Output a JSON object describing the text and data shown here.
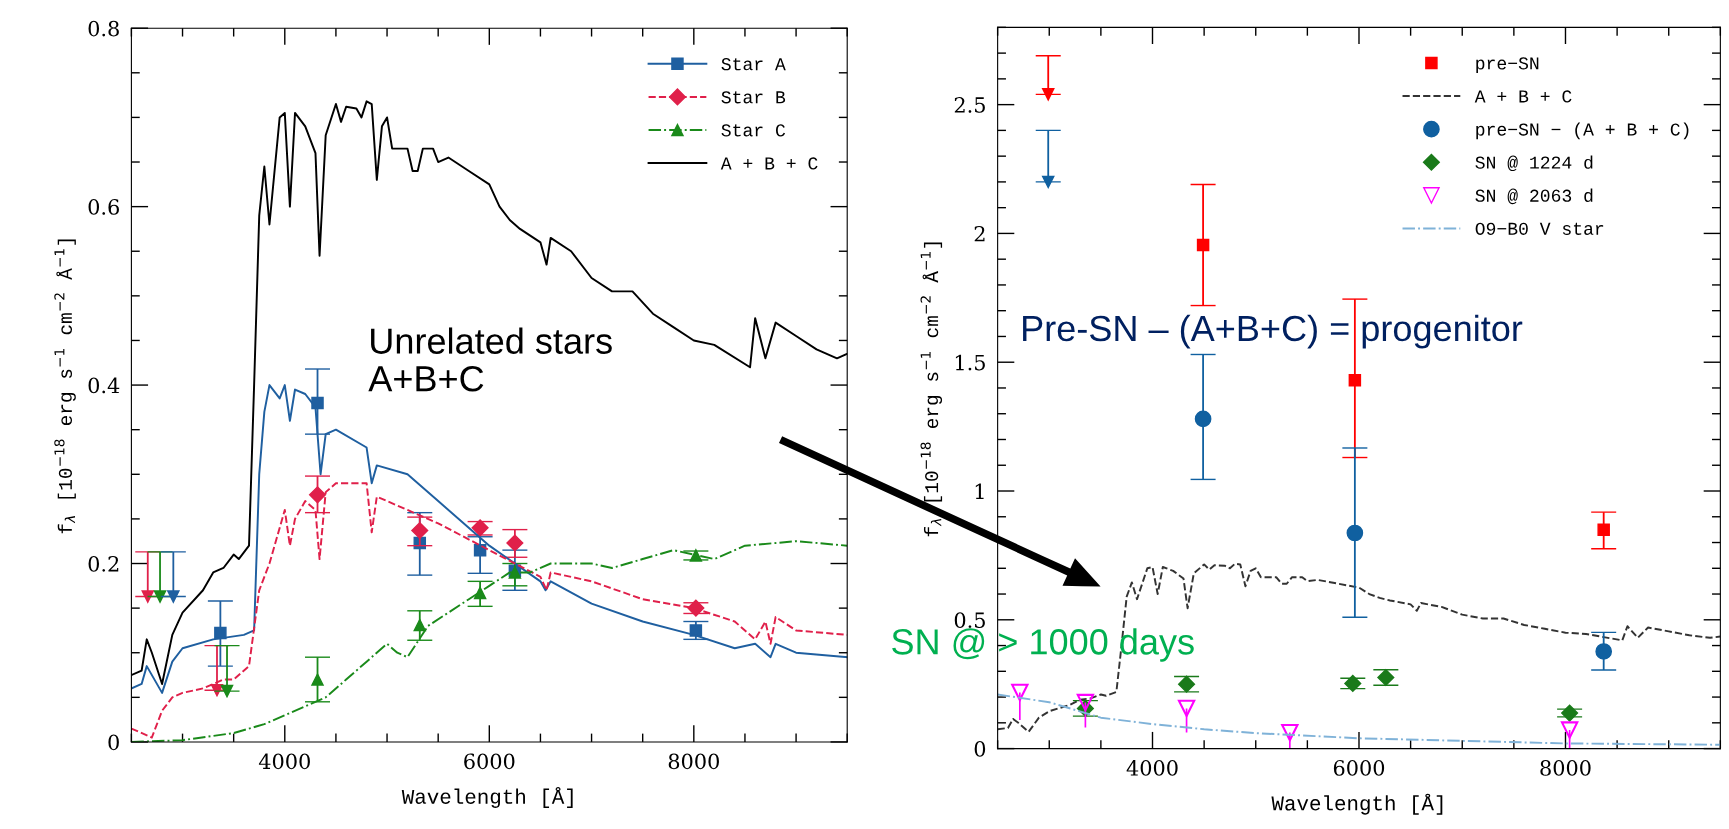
{
  "chart_data": [
    {
      "type": "line",
      "xlabel": "Wavelength [Å]",
      "ylabel": "f$_{λ}$ [10$^{−18}$ erg s$^{−1}$ cm$^{−2}$ Å$^{−1}$]",
      "xlim": [
        2500,
        9500
      ],
      "ylim": [
        0,
        0.8
      ],
      "xticks": [
        {
          "value": 2500,
          "label": null
        },
        {
          "value": 3000,
          "label": null
        },
        {
          "value": 3500,
          "label": null
        },
        4000,
        {
          "value": 4500,
          "label": null
        },
        {
          "value": 5000,
          "label": null
        },
        {
          "value": 5500,
          "label": null
        },
        6000,
        {
          "value": 6500,
          "label": null
        },
        {
          "value": 7000,
          "label": null
        },
        {
          "value": 7500,
          "label": null
        },
        8000,
        {
          "value": 8500,
          "label": null
        },
        {
          "value": 9000,
          "label": null
        },
        {
          "value": 9500,
          "label": null
        }
      ],
      "yticks": [
        0,
        {
          "value": 0.05,
          "label": null
        },
        {
          "value": 0.1,
          "label": null
        },
        {
          "value": 0.15,
          "label": null
        },
        0.2,
        {
          "value": 0.25,
          "label": null
        },
        {
          "value": 0.3,
          "label": null
        },
        {
          "value": 0.35,
          "label": null
        },
        0.4,
        {
          "value": 0.45,
          "label": null
        },
        {
          "value": 0.5,
          "label": null
        },
        {
          "value": 0.55,
          "label": null
        },
        0.6,
        {
          "value": 0.65,
          "label": null
        },
        {
          "value": 0.7,
          "label": null
        },
        {
          "value": 0.75,
          "label": null
        },
        0.8
      ],
      "legend": "top right",
      "grid": false,
      "annotations": [
        "Unrelated stars\nA+B+C"
      ],
      "series": [
        {
          "name": "Star A",
          "type": "scatter",
          "color": "#1f5fa0",
          "marker": "square",
          "x": [
            3370,
            4320,
            5320,
            5910,
            6250,
            8020
          ],
          "values": [
            0.122,
            0.38,
            0.223,
            0.215,
            0.192,
            0.125
          ],
          "errors": [
            [
              0.085,
              0.158
            ],
            [
              0.345,
              0.418
            ],
            [
              0.187,
              0.257
            ],
            [
              0.189,
              0.23
            ],
            [
              0.17,
              0.215
            ],
            [
              0.115,
              0.135
            ]
          ]
        },
        {
          "name": "Star B",
          "type": "scatter",
          "color": "#e0204a",
          "marker": "diamond",
          "x": [
            4320,
            5320,
            5910,
            6250,
            8020
          ],
          "values": [
            0.277,
            0.237,
            0.24,
            0.223,
            0.15
          ],
          "errors": [
            [
              0.257,
              0.298
            ],
            [
              0.22,
              0.252
            ],
            [
              0.232,
              0.247
            ],
            [
              0.207,
              0.238
            ],
            [
              0.144,
              0.156
            ]
          ]
        },
        {
          "name": "Star C",
          "type": "scatter",
          "color": "#1a8a1a",
          "marker": "triangle",
          "x": [
            4320,
            5320,
            5910,
            6250,
            8020
          ],
          "values": [
            0.07,
            0.131,
            0.167,
            0.19,
            0.209
          ],
          "errors": [
            [
              0.045,
              0.095
            ],
            [
              0.114,
              0.147
            ],
            [
              0.152,
              0.18
            ],
            [
              0.175,
              0.2
            ],
            [
              0.204,
              0.214
            ]
          ]
        },
        {
          "name": "A + B + C",
          "color": "#000000",
          "line_style": "solid",
          "x": [
            2500,
            2600,
            2650,
            2700,
            2800,
            2900,
            3000,
            3200,
            3300,
            3400,
            3500,
            3550,
            3650,
            3700,
            3750,
            3800,
            3850,
            3950,
            4000,
            4050,
            4100,
            4200,
            4300,
            4340,
            4400,
            4500,
            4550,
            4600,
            4700,
            4750,
            4800,
            4850,
            4900,
            4950,
            5000,
            5050,
            5200,
            5250,
            5300,
            5350,
            5450,
            5500,
            5600,
            5800,
            6000,
            6100,
            6200,
            6300,
            6500,
            6560,
            6600,
            6800,
            7000,
            7200,
            7400,
            7600,
            7800,
            8000,
            8200,
            8550,
            8600,
            8700,
            8800,
            9000,
            9200,
            9400,
            9500
          ],
          "values": [
            0.075,
            0.08,
            0.115,
            0.1,
            0.065,
            0.12,
            0.145,
            0.17,
            0.19,
            0.195,
            0.21,
            0.205,
            0.22,
            0.4,
            0.59,
            0.645,
            0.58,
            0.7,
            0.705,
            0.6,
            0.705,
            0.69,
            0.66,
            0.545,
            0.68,
            0.715,
            0.695,
            0.712,
            0.71,
            0.7,
            0.718,
            0.715,
            0.63,
            0.69,
            0.7,
            0.665,
            0.665,
            0.64,
            0.64,
            0.665,
            0.665,
            0.65,
            0.655,
            0.64,
            0.625,
            0.6,
            0.585,
            0.575,
            0.56,
            0.535,
            0.565,
            0.55,
            0.52,
            0.505,
            0.505,
            0.48,
            0.465,
            0.45,
            0.445,
            0.42,
            0.475,
            0.43,
            0.47,
            0.455,
            0.44,
            0.43,
            0.435
          ]
        },
        {
          "color": "#1f5fa0",
          "line_style": "solid",
          "x": [
            2500,
            2600,
            2650,
            2800,
            2900,
            3000,
            3300,
            3600,
            3700,
            3750,
            3800,
            3850,
            3950,
            4000,
            4050,
            4100,
            4200,
            4300,
            4350,
            4400,
            4500,
            4800,
            4850,
            4900,
            5200,
            5500,
            6000,
            6500,
            6550,
            6600,
            7000,
            7500,
            8000,
            8400,
            8600,
            8750,
            8800,
            9000,
            9500
          ],
          "values": [
            0.06,
            0.065,
            0.085,
            0.055,
            0.09,
            0.105,
            0.115,
            0.12,
            0.125,
            0.3,
            0.37,
            0.4,
            0.385,
            0.4,
            0.36,
            0.395,
            0.39,
            0.375,
            0.3,
            0.345,
            0.35,
            0.33,
            0.29,
            0.31,
            0.3,
            0.27,
            0.22,
            0.18,
            0.17,
            0.18,
            0.155,
            0.135,
            0.12,
            0.105,
            0.11,
            0.095,
            0.11,
            0.1,
            0.095
          ]
        },
        {
          "color": "#e0204a",
          "line_style": "dashed",
          "x": [
            2500,
            2700,
            2800,
            2900,
            3000,
            3200,
            3400,
            3500,
            3650,
            3750,
            3850,
            4000,
            4050,
            4100,
            4200,
            4300,
            4340,
            4400,
            4500,
            4800,
            4850,
            4900,
            5200,
            5500,
            6000,
            6500,
            6560,
            6600,
            7000,
            7500,
            8000,
            8400,
            8600,
            8700,
            8750,
            8800,
            9000,
            9500
          ],
          "values": [
            0.015,
            0.005,
            0.035,
            0.05,
            0.055,
            0.06,
            0.07,
            0.07,
            0.085,
            0.17,
            0.2,
            0.26,
            0.22,
            0.25,
            0.27,
            0.26,
            0.205,
            0.28,
            0.29,
            0.29,
            0.235,
            0.275,
            0.26,
            0.245,
            0.215,
            0.185,
            0.17,
            0.19,
            0.18,
            0.16,
            0.15,
            0.135,
            0.115,
            0.135,
            0.11,
            0.14,
            0.125,
            0.12
          ]
        },
        {
          "color": "#1a8a1a",
          "line_style": "dashdot",
          "x": [
            2500,
            3000,
            3500,
            3800,
            4000,
            4200,
            4400,
            4600,
            4800,
            5000,
            5100,
            5200,
            5400,
            5600,
            5800,
            6000,
            6200,
            6400,
            6600,
            7000,
            7200,
            7500,
            7800,
            8000,
            8200,
            8500,
            9000,
            9500
          ],
          "values": [
            0,
            0.002,
            0.01,
            0.02,
            0.03,
            0.04,
            0.05,
            0.07,
            0.09,
            0.11,
            0.1,
            0.095,
            0.13,
            0.145,
            0.16,
            0.175,
            0.19,
            0.19,
            0.2,
            0.2,
            0.195,
            0.205,
            0.215,
            0.21,
            0.205,
            0.22,
            0.225,
            0.22
          ]
        },
        {
          "type": "scatter",
          "color": "#e0204a",
          "marker": "triangle",
          "x": [
            2660,
            3337
          ],
          "values": [
            0.163,
            0.058
          ],
          "errors": [
            [
              0.163,
              0.213
            ],
            [
              0.058,
              0.108
            ]
          ]
        },
        {
          "type": "scatter",
          "color": "#1a8a1a",
          "marker": "triangle",
          "x": [
            2780,
            3435
          ],
          "values": [
            0.163,
            0.057
          ],
          "errors": [
            [
              0.163,
              0.213
            ],
            [
              0.057,
              0.108
            ]
          ]
        },
        {
          "type": "scatter",
          "color": "#1f5fa0",
          "marker": "triangle",
          "x": [
            2910
          ],
          "values": [
            0.163
          ],
          "errors": [
            [
              0.163,
              0.213
            ]
          ]
        }
      ]
    },
    {
      "type": "scatter",
      "xlabel": "Wavelength [Å]",
      "ylabel": "f$_{λ}$ [10$^{−18}$ erg s$^{−1}$ cm$^{−2}$ Å$^{−1}$]",
      "xlim": [
        2500,
        9500
      ],
      "ylim": [
        0,
        2.8
      ],
      "xticks": [
        {
          "value": 2500,
          "label": null
        },
        {
          "value": 3000,
          "label": null
        },
        {
          "value": 3500,
          "label": null
        },
        4000,
        {
          "value": 4500,
          "label": null
        },
        {
          "value": 5000,
          "label": null
        },
        {
          "value": 5500,
          "label": null
        },
        6000,
        {
          "value": 6500,
          "label": null
        },
        {
          "value": 7000,
          "label": null
        },
        {
          "value": 7500,
          "label": null
        },
        8000,
        {
          "value": 8500,
          "label": null
        },
        {
          "value": 9000,
          "label": null
        },
        {
          "value": 9500,
          "label": null
        }
      ],
      "yticks": [
        0,
        {
          "value": 0.1,
          "label": null
        },
        {
          "value": 0.2,
          "label": null
        },
        {
          "value": 0.3,
          "label": null
        },
        {
          "value": 0.4,
          "label": null
        },
        0.5,
        {
          "value": 0.6,
          "label": null
        },
        {
          "value": 0.7,
          "label": null
        },
        {
          "value": 0.8,
          "label": null
        },
        {
          "value": 0.9,
          "label": null
        },
        1,
        {
          "value": 1.1,
          "label": null
        },
        {
          "value": 1.2,
          "label": null
        },
        {
          "value": 1.3,
          "label": null
        },
        {
          "value": 1.4,
          "label": null
        },
        1.5,
        {
          "value": 1.6,
          "label": null
        },
        {
          "value": 1.7,
          "label": null
        },
        {
          "value": 1.8,
          "label": null
        },
        {
          "value": 1.9,
          "label": null
        },
        2,
        {
          "value": 2.1,
          "label": null
        },
        {
          "value": 2.2,
          "label": null
        },
        {
          "value": 2.3,
          "label": null
        },
        {
          "value": 2.4,
          "label": null
        },
        2.5,
        {
          "value": 2.6,
          "label": null
        },
        {
          "value": 2.7,
          "label": null
        },
        {
          "value": 2.8,
          "label": null
        }
      ],
      "legend": "top right",
      "grid": false,
      "annotations": [
        "Pre-SN – (A+B+C) = progenitor",
        "SN @ > 1000 days"
      ],
      "series": [
        {
          "name": "pre−SN",
          "color": "#ff0000",
          "marker": "square",
          "x": [
            4490,
            5960,
            8370
          ],
          "values": [
            1.955,
            1.43,
            0.85
          ],
          "errors": [
            [
              1.72,
              2.19
            ],
            [
              1.13,
              1.745
            ],
            [
              0.776,
              0.918
            ]
          ]
        },
        {
          "name": "A + B + C",
          "type": "line",
          "color": "#333333",
          "line_style": "dashed",
          "x": [
            2500,
            2600,
            2650,
            2700,
            2800,
            2900,
            3000,
            3200,
            3300,
            3400,
            3500,
            3550,
            3650,
            3700,
            3750,
            3800,
            3850,
            3950,
            4000,
            4050,
            4100,
            4200,
            4300,
            4340,
            4400,
            4500,
            4550,
            4600,
            4700,
            4750,
            4800,
            4850,
            4900,
            4950,
            5000,
            5050,
            5200,
            5250,
            5300,
            5350,
            5450,
            5500,
            5600,
            5800,
            6000,
            6100,
            6200,
            6300,
            6500,
            6560,
            6600,
            6800,
            7000,
            7200,
            7400,
            7600,
            7800,
            8000,
            8200,
            8550,
            8600,
            8700,
            8800,
            9000,
            9200,
            9400,
            9500
          ],
          "values": [
            0.075,
            0.08,
            0.115,
            0.1,
            0.065,
            0.12,
            0.145,
            0.17,
            0.19,
            0.195,
            0.21,
            0.205,
            0.22,
            0.4,
            0.59,
            0.645,
            0.58,
            0.7,
            0.705,
            0.6,
            0.705,
            0.69,
            0.66,
            0.545,
            0.68,
            0.715,
            0.695,
            0.712,
            0.71,
            0.7,
            0.718,
            0.715,
            0.63,
            0.69,
            0.7,
            0.665,
            0.665,
            0.64,
            0.64,
            0.665,
            0.665,
            0.65,
            0.655,
            0.64,
            0.625,
            0.6,
            0.585,
            0.575,
            0.56,
            0.535,
            0.565,
            0.55,
            0.52,
            0.505,
            0.505,
            0.48,
            0.465,
            0.45,
            0.445,
            0.42,
            0.475,
            0.43,
            0.47,
            0.455,
            0.44,
            0.43,
            0.435
          ]
        },
        {
          "name": "pre−SN − (A + B + C)",
          "color": "#1060a0",
          "marker": "circle",
          "x": [
            4490,
            5960,
            8370
          ],
          "values": [
            1.28,
            0.837,
            0.377
          ],
          "errors": [
            [
              1.045,
              1.53
            ],
            [
              0.51,
              1.167
            ],
            [
              0.305,
              0.451
            ]
          ]
        },
        {
          "name": "SN @ 1224 d",
          "color": "#1a7a1a",
          "marker": "diamond",
          "x": [
            3350,
            4330,
            5940,
            6260,
            8040
          ],
          "values": [
            0.156,
            0.25,
            0.253,
            0.276,
            0.138
          ],
          "errors": [
            0.03,
            0.03,
            0.02,
            0.03,
            0.015
          ]
        },
        {
          "name": "SN @ 2063 d",
          "color": "#ff00ff",
          "marker": "triangle",
          "x": [
            2715,
            3350,
            4330,
            5330,
            8040
          ],
          "values": [
            0.218,
            0.179,
            0.156,
            0.062,
            0.072
          ],
          "errors": [
            [
              0.111,
              0.218
            ],
            [
              0.082,
              0.179
            ],
            [
              0.062,
              0.156
            ],
            [
              0,
              0.062
            ],
            [
              0,
              0.072
            ]
          ]
        },
        {
          "name": "O9−B0 V star",
          "type": "line",
          "color": "#7fb2d8",
          "line_style": "dashdot",
          "x": [
            2500,
            3000,
            3500,
            4000,
            4500,
            5000,
            6000,
            7000,
            8000,
            9500
          ],
          "values": [
            0.21,
            0.18,
            0.12,
            0.095,
            0.075,
            0.06,
            0.04,
            0.03,
            0.02,
            0.015
          ]
        },
        {
          "color": "#ff0000",
          "marker": "triangle",
          "x": [
            2990
          ],
          "values": [
            2.54
          ],
          "errors": [
            [
              2.54,
              2.69
            ]
          ]
        },
        {
          "color": "#1060a0",
          "marker": "triangle",
          "x": [
            2990
          ],
          "values": [
            2.2
          ],
          "errors": [
            [
              2.2,
              2.4
            ]
          ]
        }
      ]
    }
  ]
}
